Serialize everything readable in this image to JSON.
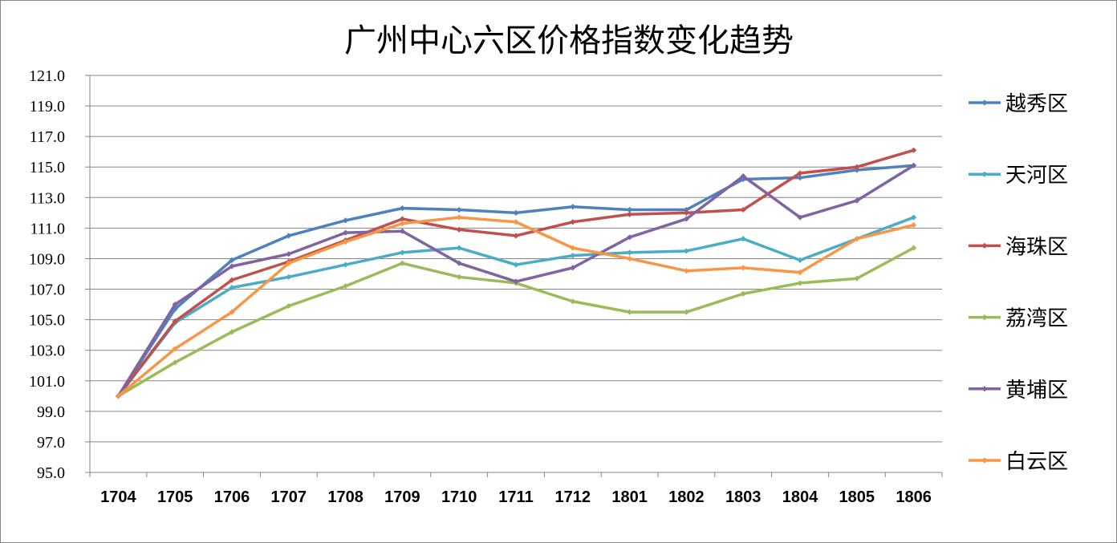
{
  "chart_data": {
    "type": "line",
    "title": "广州中心六区价格指数变化趋势",
    "xlabel": "",
    "ylabel": "",
    "categories": [
      "1704",
      "1705",
      "1706",
      "1707",
      "1708",
      "1709",
      "1710",
      "1711",
      "1712",
      "1801",
      "1802",
      "1803",
      "1804",
      "1805",
      "1806"
    ],
    "ylim": [
      95.0,
      121.0
    ],
    "yticks": [
      "121.0",
      "119.0",
      "117.0",
      "115.0",
      "113.0",
      "111.0",
      "109.0",
      "107.0",
      "105.0",
      "103.0",
      "101.0",
      "99.0",
      "97.0",
      "95.0"
    ],
    "grid": true,
    "legend_position": "right",
    "series": [
      {
        "name": "越秀区",
        "color": "#4F81BD",
        "values": [
          100.0,
          105.7,
          108.9,
          110.5,
          111.5,
          112.3,
          112.2,
          112.0,
          112.4,
          112.2,
          112.2,
          114.2,
          114.3,
          114.8,
          115.1
        ]
      },
      {
        "name": "天河区",
        "color": "#4BACC6",
        "values": [
          100.0,
          104.8,
          107.1,
          107.8,
          108.6,
          109.4,
          109.7,
          108.6,
          109.2,
          109.4,
          109.5,
          110.3,
          108.9,
          110.3,
          111.7
        ]
      },
      {
        "name": "海珠区",
        "color": "#C0504D",
        "values": [
          100.0,
          104.9,
          107.6,
          108.8,
          110.2,
          111.6,
          110.9,
          110.5,
          111.4,
          111.9,
          112.0,
          112.2,
          114.6,
          115.0,
          116.1
        ]
      },
      {
        "name": "荔湾区",
        "color": "#9BBB59",
        "values": [
          100.0,
          102.2,
          104.2,
          105.9,
          107.2,
          108.7,
          107.8,
          107.4,
          106.2,
          105.5,
          105.5,
          106.7,
          107.4,
          107.7,
          109.7
        ]
      },
      {
        "name": "黄埔区",
        "color": "#8064A2",
        "values": [
          100.0,
          106.0,
          108.5,
          109.3,
          110.7,
          110.8,
          108.7,
          107.5,
          108.4,
          110.4,
          111.6,
          114.4,
          111.7,
          112.8,
          115.1
        ]
      },
      {
        "name": "白云区",
        "color": "#F79646",
        "values": [
          100.0,
          103.1,
          105.5,
          108.7,
          110.1,
          111.3,
          111.7,
          111.4,
          109.7,
          109.0,
          108.2,
          108.4,
          108.1,
          110.3,
          111.2
        ]
      }
    ]
  }
}
